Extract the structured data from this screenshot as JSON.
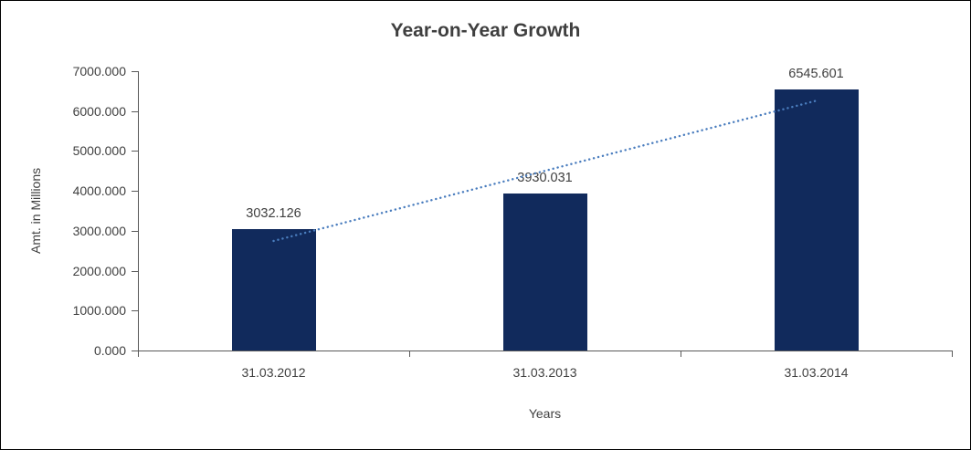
{
  "chart_data": {
    "type": "bar",
    "title": "Year-on-Year Growth",
    "xlabel": "Years",
    "ylabel": "Amt. in Millions",
    "categories": [
      "31.03.2012",
      "31.03.2013",
      "31.03.2014"
    ],
    "values": [
      3032.126,
      3930.031,
      6545.601
    ],
    "data_labels": [
      "3032.126",
      "3930.031",
      "6545.601"
    ],
    "ylim": [
      0,
      7000
    ],
    "ytick_step": 1000,
    "ytick_labels": [
      "0.000",
      "1000.000",
      "2000.000",
      "3000.000",
      "4000.000",
      "5000.000",
      "6000.000",
      "7000.000"
    ],
    "grid": false,
    "legend": false,
    "bar_color": "#112A5C",
    "axis_color": "#595959",
    "text_color": "#404040",
    "trendline": {
      "type": "linear",
      "style": "dotted",
      "color": "#4A7DBE",
      "start_value": 2745.9,
      "end_value": 6259.3
    }
  }
}
